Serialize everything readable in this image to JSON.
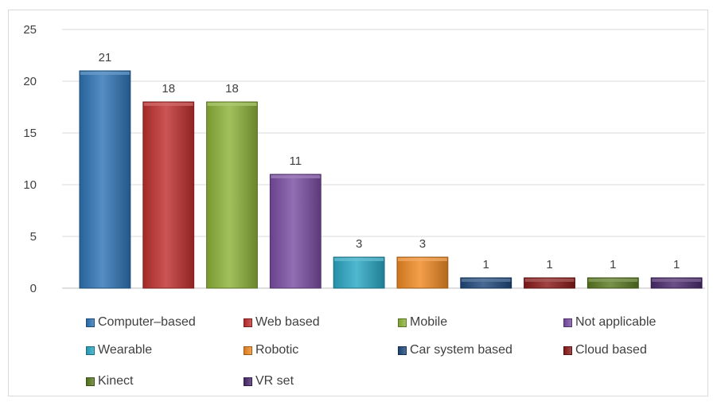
{
  "chart_data": {
    "type": "bar",
    "categories": [
      "Computer–based",
      "Web based",
      "Mobile",
      "Not applicable",
      "Wearable",
      "Robotic",
      "Car system based",
      "Cloud based",
      "Kinect",
      "VR set"
    ],
    "values": [
      21,
      18,
      18,
      11,
      3,
      3,
      1,
      1,
      1,
      1
    ],
    "data_labels": [
      "21",
      "18",
      "18",
      "11",
      "3",
      "3",
      "1",
      "1",
      "1",
      "1"
    ],
    "colors": [
      "#2e75b6",
      "#c0302f",
      "#8db33a",
      "#7a4ea3",
      "#2aa8c4",
      "#f08a24",
      "#1f497d",
      "#8b1a1a",
      "#5a7a22",
      "#4b2a6e"
    ],
    "ylim": [
      0,
      25
    ],
    "yticks": [
      0,
      5,
      10,
      15,
      20,
      25
    ],
    "ytick_labels": [
      "0",
      "5",
      "10",
      "15",
      "20",
      "25"
    ],
    "grid": true,
    "legend": "bottom",
    "title": "",
    "xlabel": "",
    "ylabel": ""
  }
}
